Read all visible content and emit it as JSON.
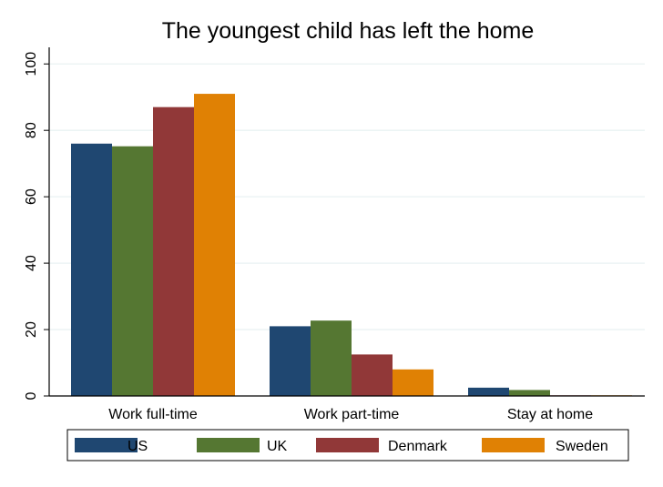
{
  "chart_data": {
    "type": "bar",
    "title": "The youngest child has left the home",
    "xlabel": "",
    "ylabel": "",
    "categories": [
      "Work full-time",
      "Work part-time",
      "Stay at home"
    ],
    "ylim": [
      0,
      105
    ],
    "yticks": [
      0,
      20,
      40,
      60,
      80,
      100
    ],
    "grid": true,
    "legend_position": "bottom",
    "series": [
      {
        "name": "US",
        "color": "#1f4771",
        "values": [
          76,
          21,
          2.5
        ]
      },
      {
        "name": "UK",
        "color": "#557732",
        "values": [
          75.2,
          22.7,
          1.8
        ]
      },
      {
        "name": "Denmark",
        "color": "#913838",
        "values": [
          87,
          12.5,
          0.2
        ]
      },
      {
        "name": "Sweden",
        "color": "#e08104",
        "values": [
          91,
          8,
          0.2
        ]
      }
    ]
  }
}
